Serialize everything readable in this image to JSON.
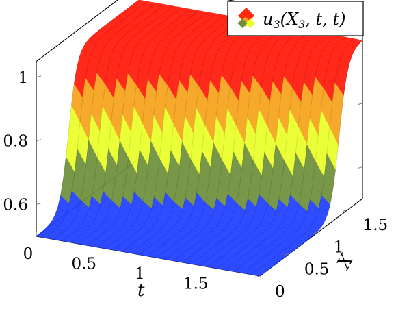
{
  "chart_data": {
    "type": "surface",
    "title": "",
    "series": [
      {
        "name": "u_3(X_3, t, t)",
        "legend_parts": [
          "u",
          "3",
          "(X",
          "3",
          ", t, t)"
        ]
      }
    ],
    "xlabel": "t",
    "ylabel": "X",
    "zlabel": "",
    "xlim": [
      0,
      2
    ],
    "ylim": [
      0,
      1.75
    ],
    "zlim": [
      0.5,
      1.05
    ],
    "x_ticks": [
      "0",
      "0.5",
      "1",
      "1.5"
    ],
    "x_tick_values": [
      0,
      0.5,
      1,
      1.5
    ],
    "y_ticks": [
      "0",
      "0.5",
      "1",
      "1.5"
    ],
    "y_tick_values": [
      0,
      0.5,
      1,
      1.5
    ],
    "z_ticks": [
      "0.6",
      "0.8",
      "1"
    ],
    "z_tick_values": [
      0.6,
      0.8,
      1.0
    ],
    "surface": {
      "description_values": "step in X from 0.5 to 1.0, step location shifts with t",
      "low_value": 0.5,
      "high_value": 1.0,
      "step_X_at_t0": 0.55,
      "step_X_at_t2": 1.35
    },
    "colormap": [
      "#1f3fff",
      "#6e8f3a",
      "#eaff2a",
      "#f5a31a",
      "#ff1a0a"
    ],
    "legend_position": "top-right",
    "grid": false
  }
}
